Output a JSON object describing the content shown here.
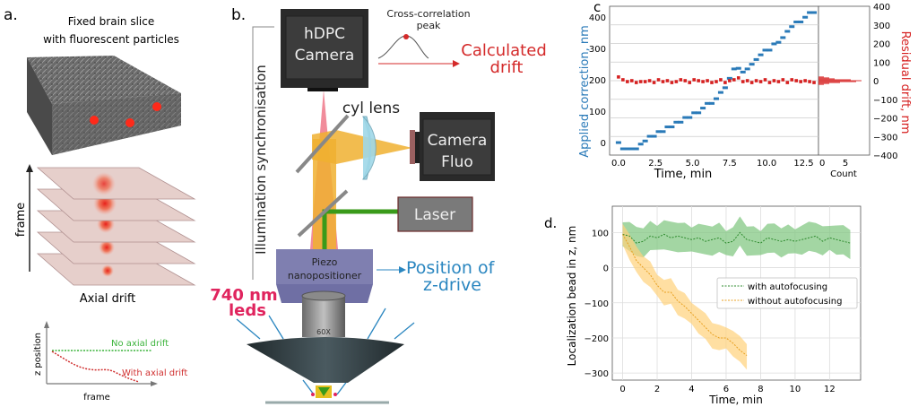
{
  "panel_a": {
    "label": "a.",
    "title_line1": "Fixed brain slice",
    "title_line2": "with fluorescent particles",
    "frame_axis": "frame",
    "stack_caption": "Axial drift",
    "mini_plot": {
      "ylabel": "z position",
      "xlabel": "frame",
      "no_drift_label": "No axial drift",
      "with_drift_label": "With axial drift",
      "no_drift_color": "#3cb43c",
      "with_drift_color": "#d03030"
    }
  },
  "panel_b": {
    "label": "b.",
    "hdpc_camera_line1": "hDPC",
    "hdpc_camera_line2": "Camera",
    "sync_label": "Illumination synchronisation",
    "cross_corr_line1": "Cross-correlation",
    "cross_corr_line2": "peak",
    "calculated_line1": "Calculated",
    "calculated_line2": "drift",
    "cyl_lens": "cyl lens",
    "fluo_camera_line1": "Camera",
    "fluo_camera_line2": "Fluo",
    "laser": "Laser",
    "piezo_line1": "Piezo",
    "piezo_line2": "nanopositioner",
    "position_line1": "Position of",
    "position_line2": "z-drive",
    "leds_line1": "740 nm",
    "leds_line2": "leds",
    "objective": "60X",
    "colors": {
      "drift": "#d42a2a",
      "position": "#2a86c0",
      "leds": "#e0245e",
      "laser_beam": "#3a9a1a",
      "hdpc_beam": "#f08090",
      "fluo_beam": "#f0b030"
    }
  },
  "chart_data": [
    {
      "panel_label": "c",
      "type": "scatter",
      "xlabel": "Time, min",
      "ylabel_left": "Applied correction, nm",
      "ylabel_right": "Residual drift, nm",
      "xlim": [
        -0.6,
        13.5
      ],
      "ylim_left": [
        -40,
        435
      ],
      "ylim_right": [
        -400,
        400
      ],
      "xticks": [
        "0.0",
        "2.5",
        "5.0",
        "7.5",
        "10.0",
        "12.5"
      ],
      "yticks_left": [
        "0",
        "100",
        "200",
        "300",
        "400"
      ],
      "yticks_right": [
        "400",
        "300",
        "200",
        "100",
        "0",
        "−100",
        "−200",
        "−300",
        "−400"
      ],
      "grid": "horizontal",
      "colors": {
        "applied": "#2a7ab8",
        "residual": "#d62020"
      },
      "x": [
        0,
        0.3,
        0.6,
        0.9,
        1.2,
        1.5,
        1.8,
        2.1,
        2.4,
        2.7,
        3.0,
        3.3,
        3.6,
        3.9,
        4.2,
        4.5,
        4.8,
        5.1,
        5.4,
        5.7,
        6.0,
        6.3,
        6.6,
        6.9,
        7.2,
        7.5,
        7.8,
        8.1,
        8.4,
        8.7,
        9.0,
        9.3,
        9.6,
        9.9,
        10.2,
        10.5,
        10.8,
        11.1,
        11.4,
        11.7,
        12.0,
        12.3,
        12.6,
        12.9,
        13.2
      ],
      "applied_correction": [
        0,
        -20,
        -20,
        -20,
        -20,
        -5,
        5,
        20,
        20,
        35,
        35,
        50,
        50,
        65,
        65,
        80,
        80,
        95,
        95,
        110,
        125,
        125,
        140,
        160,
        175,
        205,
        235,
        237,
        225,
        235,
        250,
        265,
        280,
        295,
        295,
        315,
        320,
        335,
        355,
        370,
        385,
        385,
        400,
        415,
        415
      ],
      "residual_drift": [
        20,
        5,
        -5,
        0,
        -10,
        -5,
        -5,
        0,
        -10,
        5,
        -5,
        0,
        -10,
        -5,
        5,
        0,
        -10,
        5,
        0,
        -5,
        0,
        -10,
        -5,
        5,
        -10,
        0,
        5,
        15,
        -5,
        0,
        -10,
        0,
        -5,
        5,
        -10,
        0,
        -5,
        5,
        -10,
        5,
        0,
        -5,
        0,
        -5,
        -10
      ],
      "histogram": {
        "xlabel": "Count",
        "xticks": [
          "0",
          "5"
        ],
        "xlim": [
          0,
          9.5
        ],
        "bin_centers": [
          -20,
          -15,
          -10,
          -5,
          0,
          5,
          10,
          15,
          20
        ],
        "counts": [
          1,
          2,
          4,
          7,
          8,
          6,
          3,
          2,
          1
        ]
      }
    },
    {
      "panel_label": "d.",
      "type": "line",
      "xlabel": "Time, min",
      "ylabel": "Localization bead in z, nm",
      "xlim": [
        -0.6,
        13.8
      ],
      "ylim": [
        -320,
        175
      ],
      "xticks": [
        0,
        2,
        4,
        6,
        8,
        10,
        12
      ],
      "yticks": [
        100,
        0,
        -100,
        -200,
        -300
      ],
      "ytick_labels": [
        "100",
        "0",
        "−100",
        "−200",
        "−300"
      ],
      "grid": true,
      "legend": "center-right",
      "series": [
        {
          "name": "with autofocusing",
          "color": "#2e8b2e",
          "band_color": "#7cc47c",
          "band_halfwidth": 40,
          "x": [
            0,
            0.4,
            0.8,
            1.2,
            1.6,
            2.0,
            2.4,
            2.8,
            3.2,
            3.6,
            4.0,
            4.4,
            4.8,
            5.2,
            5.6,
            6.0,
            6.4,
            6.8,
            7.2,
            7.6,
            8.0,
            8.4,
            8.8,
            9.2,
            9.6,
            10.0,
            10.4,
            10.8,
            11.2,
            11.6,
            12.0,
            12.4,
            12.8,
            13.2
          ],
          "y": [
            95,
            90,
            70,
            75,
            90,
            85,
            95,
            85,
            90,
            85,
            80,
            85,
            75,
            80,
            85,
            70,
            75,
            100,
            80,
            75,
            70,
            85,
            80,
            75,
            80,
            75,
            80,
            85,
            90,
            75,
            85,
            80,
            75,
            70
          ]
        },
        {
          "name": "without autofocusing",
          "color": "#e8a020",
          "band_color": "#ffd27a",
          "band_halfwidth": 35,
          "x": [
            0,
            0.4,
            0.8,
            1.2,
            1.6,
            2.0,
            2.4,
            2.8,
            3.2,
            3.6,
            4.0,
            4.4,
            4.8,
            5.2,
            5.6,
            6.0,
            6.4,
            6.8,
            7.2
          ],
          "y": [
            95,
            60,
            20,
            0,
            -20,
            -50,
            -70,
            -70,
            -95,
            -110,
            -130,
            -150,
            -170,
            -190,
            -200,
            -200,
            -215,
            -235,
            -250
          ]
        }
      ]
    }
  ]
}
